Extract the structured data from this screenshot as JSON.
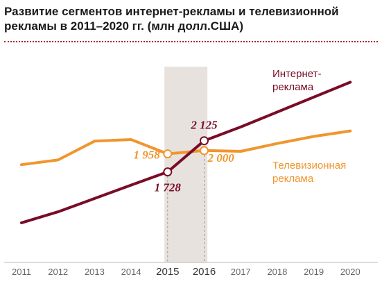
{
  "title": "Развитие сегментов интернет-рекламы и телевизионной рекламы в 2011–2020 гг. (млн долл.США)",
  "chart_data": {
    "type": "line",
    "x": [
      "2011",
      "2012",
      "2013",
      "2014",
      "2015",
      "2016",
      "2017",
      "2018",
      "2019",
      "2020"
    ],
    "emphasized_ticks": [
      "2015",
      "2016"
    ],
    "highlight_range": [
      "2015",
      "2016"
    ],
    "ylim": [
      1000,
      2900
    ],
    "grid": false,
    "series": [
      {
        "name_lines": [
          "Интернет-",
          "реклама"
        ],
        "color": "#7a0c26",
        "values": [
          1080,
          1220,
          1390,
          1560,
          1728,
          2125,
          2300,
          2490,
          2680,
          2870
        ]
      },
      {
        "name_lines": [
          "Телевизионная",
          "реклама"
        ],
        "color": "#f0962e",
        "values": [
          1820,
          1880,
          2120,
          2140,
          1958,
          2000,
          1990,
          2090,
          2180,
          2250
        ]
      }
    ],
    "annotations": [
      {
        "text": "1 958",
        "x": "2015",
        "series": 1,
        "color": "#f0962e"
      },
      {
        "text": "1 728",
        "x": "2015",
        "series": 0,
        "color": "#7a0c26"
      },
      {
        "text": "2 125",
        "x": "2016",
        "series": 0,
        "color": "#7a0c26"
      },
      {
        "text": "2 000",
        "x": "2016",
        "series": 1,
        "color": "#f0962e"
      }
    ]
  }
}
